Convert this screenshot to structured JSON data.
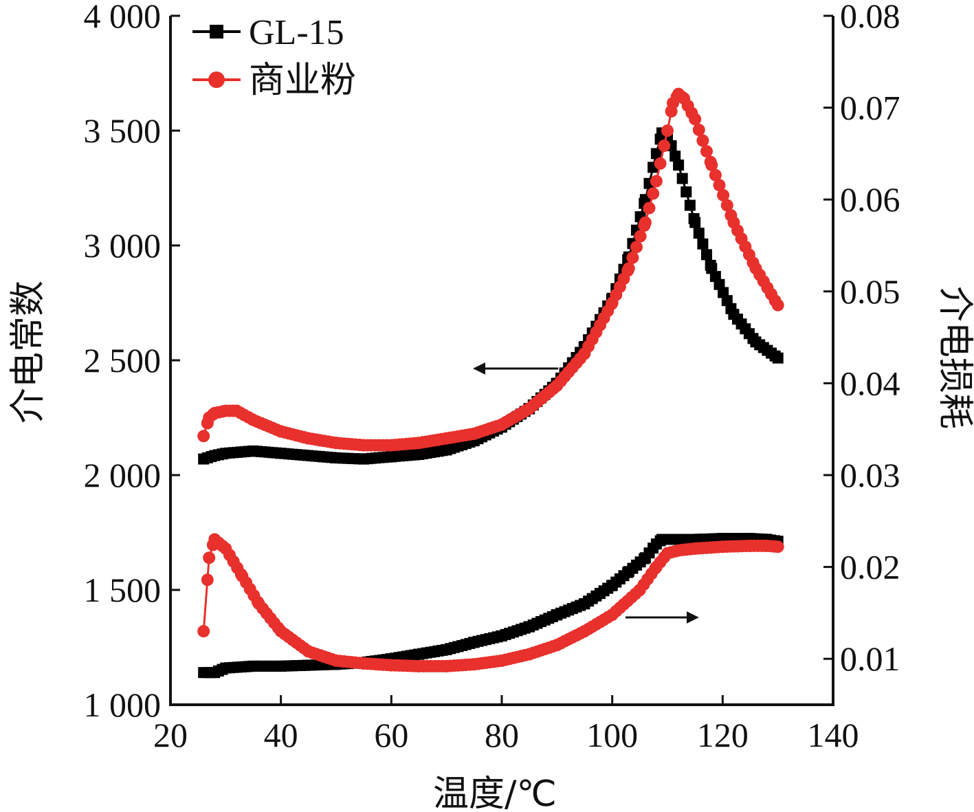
{
  "chart_data": {
    "type": "line",
    "xlabel": "温度/℃",
    "ylabel_left": "介电常数",
    "ylabel_right": "介电损耗",
    "xlim": [
      20,
      140
    ],
    "ylim_left": [
      1000,
      4000
    ],
    "ylim_right": [
      0.005,
      0.08
    ],
    "x_ticks": [
      20,
      40,
      60,
      80,
      100,
      120,
      140
    ],
    "x_tick_labels": [
      "20",
      "40",
      "60",
      "80",
      "100",
      "120",
      "140"
    ],
    "y_left_ticks": [
      1000,
      1500,
      2000,
      2500,
      3000,
      3500,
      4000
    ],
    "y_left_tick_labels": [
      "1 000",
      "1 500",
      "2 000",
      "2 500",
      "3 000",
      "3 500",
      "4 000"
    ],
    "y_right_ticks": [
      0.01,
      0.02,
      0.03,
      0.04,
      0.05,
      0.06,
      0.07,
      0.08
    ],
    "y_right_tick_labels": [
      "0.01",
      "0.02",
      "0.03",
      "0.04",
      "0.05",
      "0.06",
      "0.07",
      "0.08"
    ],
    "legend_position": "top-left",
    "colors": {
      "GL-15": "#000000",
      "商业粉": "#e8302c"
    },
    "series": [
      {
        "name": "GL-15",
        "axis": "left",
        "marker": "square",
        "color": "#000000",
        "x": [
          26,
          28,
          30,
          35,
          40,
          50,
          55,
          60,
          65,
          70,
          75,
          80,
          85,
          90,
          95,
          100,
          103,
          106,
          108,
          109,
          110,
          112,
          115,
          118,
          122,
          126,
          130
        ],
        "y": [
          2070,
          2085,
          2095,
          2105,
          2095,
          2075,
          2070,
          2080,
          2090,
          2110,
          2150,
          2210,
          2290,
          2400,
          2560,
          2770,
          2950,
          3200,
          3400,
          3490,
          3480,
          3350,
          3100,
          2900,
          2700,
          2580,
          2510
        ]
      },
      {
        "name": "GL-15",
        "axis": "right",
        "marker": "square",
        "color": "#000000",
        "x": [
          26,
          28,
          30,
          35,
          40,
          50,
          55,
          60,
          65,
          70,
          75,
          80,
          85,
          90,
          95,
          100,
          103,
          106,
          108,
          109,
          112,
          115,
          120,
          125,
          128,
          130
        ],
        "y": [
          0.0085,
          0.0085,
          0.009,
          0.0092,
          0.0092,
          0.0094,
          0.0096,
          0.01,
          0.0105,
          0.011,
          0.0118,
          0.0125,
          0.0135,
          0.0148,
          0.016,
          0.018,
          0.0195,
          0.021,
          0.0225,
          0.023,
          0.023,
          0.023,
          0.0231,
          0.0231,
          0.023,
          0.0228
        ]
      },
      {
        "name": "商业粉",
        "axis": "left",
        "marker": "circle",
        "color": "#e8302c",
        "x": [
          26,
          27,
          28,
          30,
          32,
          35,
          40,
          45,
          50,
          55,
          60,
          65,
          70,
          75,
          80,
          85,
          90,
          95,
          100,
          103,
          106,
          108,
          110,
          111,
          112,
          113,
          115,
          118,
          122,
          126,
          130
        ],
        "y": [
          2170,
          2250,
          2270,
          2280,
          2280,
          2240,
          2190,
          2160,
          2140,
          2130,
          2130,
          2140,
          2160,
          2180,
          2220,
          2290,
          2390,
          2530,
          2750,
          2900,
          3100,
          3280,
          3500,
          3620,
          3660,
          3640,
          3550,
          3350,
          3100,
          2900,
          2740
        ]
      },
      {
        "name": "商业粉",
        "axis": "right",
        "marker": "circle",
        "color": "#e8302c",
        "x": [
          26,
          27,
          28,
          30,
          33,
          36,
          40,
          45,
          50,
          55,
          60,
          65,
          70,
          75,
          80,
          85,
          90,
          95,
          100,
          105,
          108,
          110,
          112,
          115,
          120,
          125,
          128,
          130
        ],
        "y": [
          0.013,
          0.021,
          0.023,
          0.022,
          0.019,
          0.016,
          0.013,
          0.0108,
          0.0098,
          0.0095,
          0.0093,
          0.0092,
          0.0092,
          0.0094,
          0.0098,
          0.0105,
          0.0115,
          0.013,
          0.0148,
          0.0175,
          0.02,
          0.0215,
          0.0218,
          0.022,
          0.0222,
          0.0223,
          0.0223,
          0.0222
        ]
      }
    ],
    "annotations": [
      {
        "type": "arrow",
        "direction": "left",
        "meaning": "series refers to left axis"
      },
      {
        "type": "arrow",
        "direction": "right",
        "meaning": "series refers to right axis"
      }
    ]
  }
}
